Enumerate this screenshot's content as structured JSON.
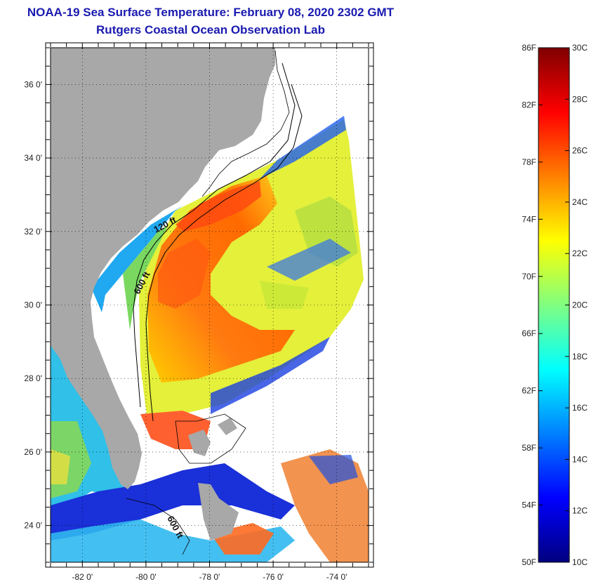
{
  "header": {
    "title": "NOAA-19 Sea Surface Temperature:  February 08, 2020 2302 GMT",
    "subtitle": "Rutgers Coastal Ocean Observation Lab"
  },
  "map": {
    "lon_range": [
      -83,
      -73
    ],
    "lat_range": [
      23,
      37
    ],
    "lon_ticks": [
      {
        "value": -82,
        "label": "-82 0'"
      },
      {
        "value": -80,
        "label": "-80 0'"
      },
      {
        "value": -78,
        "label": "-78 0'"
      },
      {
        "value": -76,
        "label": "-76 0'"
      },
      {
        "value": -74,
        "label": "-74 0'"
      }
    ],
    "lat_ticks": [
      {
        "value": 24,
        "label": "24 0'"
      },
      {
        "value": 26,
        "label": "26 0'"
      },
      {
        "value": 28,
        "label": "28 0'"
      },
      {
        "value": 30,
        "label": "30 0'"
      },
      {
        "value": 32,
        "label": "32 0'"
      },
      {
        "value": 34,
        "label": "34 0'"
      },
      {
        "value": 36,
        "label": "36 0'"
      }
    ],
    "contour_labels": [
      {
        "text": "120 ft"
      },
      {
        "text": "600 ft"
      },
      {
        "text": "600 ft"
      }
    ],
    "colors": {
      "land": "#a8a8a8",
      "nodata": "#ffffff"
    }
  },
  "colorbar": {
    "fahrenheit_labels": [
      "86F",
      "82F",
      "78F",
      "74F",
      "70F",
      "66F",
      "62F",
      "58F",
      "54F",
      "50F"
    ],
    "celsius_labels": [
      "30C",
      "28C",
      "26C",
      "24C",
      "22C",
      "20C",
      "18C",
      "16C",
      "14C",
      "12C",
      "10C"
    ],
    "range_c": [
      10,
      30
    ],
    "colors": [
      "#00007f",
      "#0000ff",
      "#0080ff",
      "#00ffff",
      "#80ff80",
      "#ffff00",
      "#ff8000",
      "#ff0000",
      "#7f0000"
    ]
  }
}
